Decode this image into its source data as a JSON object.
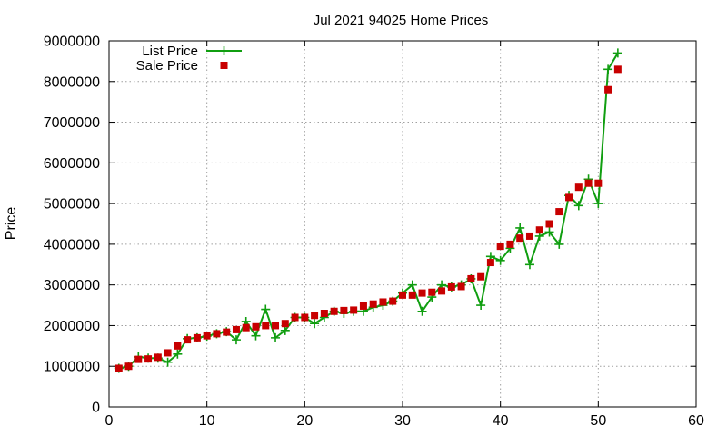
{
  "chart_data": {
    "type": "line",
    "title": "Jul 2021 94025 Home Prices",
    "xlabel": "",
    "ylabel": "Price",
    "xlim": [
      0,
      60
    ],
    "ylim": [
      0,
      9000000
    ],
    "xticks": [
      "0",
      "10",
      "20",
      "30",
      "40",
      "50",
      "60"
    ],
    "yticks": [
      "0",
      "1000000",
      "2000000",
      "3000000",
      "4000000",
      "5000000",
      "6000000",
      "7000000",
      "8000000",
      "9000000"
    ],
    "grid": true,
    "legend_position": "top-left",
    "series": [
      {
        "name": "List Price",
        "style": "line-points",
        "marker": "plus",
        "color": "#109e10",
        "points": [
          [
            1,
            950000
          ],
          [
            2,
            1000000
          ],
          [
            3,
            1230000
          ],
          [
            4,
            1200000
          ],
          [
            5,
            1200000
          ],
          [
            6,
            1100000
          ],
          [
            7,
            1300000
          ],
          [
            8,
            1680000
          ],
          [
            9,
            1700000
          ],
          [
            10,
            1740000
          ],
          [
            11,
            1800000
          ],
          [
            12,
            1850000
          ],
          [
            13,
            1650000
          ],
          [
            14,
            2100000
          ],
          [
            15,
            1750000
          ],
          [
            16,
            2400000
          ],
          [
            17,
            1700000
          ],
          [
            18,
            1880000
          ],
          [
            19,
            2200000
          ],
          [
            20,
            2200000
          ],
          [
            21,
            2050000
          ],
          [
            22,
            2200000
          ],
          [
            23,
            2350000
          ],
          [
            24,
            2300000
          ],
          [
            25,
            2350000
          ],
          [
            26,
            2350000
          ],
          [
            27,
            2450000
          ],
          [
            28,
            2500000
          ],
          [
            29,
            2600000
          ],
          [
            30,
            2800000
          ],
          [
            31,
            3000000
          ],
          [
            32,
            2350000
          ],
          [
            33,
            2700000
          ],
          [
            34,
            3000000
          ],
          [
            35,
            2950000
          ],
          [
            36,
            3000000
          ],
          [
            37,
            3150000
          ],
          [
            38,
            2500000
          ],
          [
            39,
            3700000
          ],
          [
            40,
            3600000
          ],
          [
            41,
            3900000
          ],
          [
            42,
            4400000
          ],
          [
            43,
            3500000
          ],
          [
            44,
            4200000
          ],
          [
            45,
            4300000
          ],
          [
            46,
            4000000
          ],
          [
            47,
            5200000
          ],
          [
            48,
            4950000
          ],
          [
            49,
            5600000
          ],
          [
            50,
            5000000
          ],
          [
            51,
            8300000
          ],
          [
            52,
            8700000
          ]
        ]
      },
      {
        "name": "Sale Price",
        "style": "points",
        "marker": "square",
        "color": "#c80000",
        "points": [
          [
            1,
            950000
          ],
          [
            2,
            1000000
          ],
          [
            3,
            1170000
          ],
          [
            4,
            1180000
          ],
          [
            5,
            1220000
          ],
          [
            6,
            1330000
          ],
          [
            7,
            1500000
          ],
          [
            8,
            1650000
          ],
          [
            9,
            1700000
          ],
          [
            10,
            1750000
          ],
          [
            11,
            1800000
          ],
          [
            12,
            1840000
          ],
          [
            13,
            1900000
          ],
          [
            14,
            1950000
          ],
          [
            15,
            1970000
          ],
          [
            16,
            2000000
          ],
          [
            17,
            2000000
          ],
          [
            18,
            2050000
          ],
          [
            19,
            2200000
          ],
          [
            20,
            2200000
          ],
          [
            21,
            2250000
          ],
          [
            22,
            2300000
          ],
          [
            23,
            2350000
          ],
          [
            24,
            2370000
          ],
          [
            25,
            2380000
          ],
          [
            26,
            2480000
          ],
          [
            27,
            2530000
          ],
          [
            28,
            2580000
          ],
          [
            29,
            2600000
          ],
          [
            30,
            2750000
          ],
          [
            31,
            2750000
          ],
          [
            32,
            2800000
          ],
          [
            33,
            2820000
          ],
          [
            34,
            2850000
          ],
          [
            35,
            2950000
          ],
          [
            36,
            2960000
          ],
          [
            37,
            3150000
          ],
          [
            38,
            3200000
          ],
          [
            39,
            3550000
          ],
          [
            40,
            3950000
          ],
          [
            41,
            4000000
          ],
          [
            42,
            4150000
          ],
          [
            43,
            4200000
          ],
          [
            44,
            4350000
          ],
          [
            45,
            4500000
          ],
          [
            46,
            4800000
          ],
          [
            47,
            5150000
          ],
          [
            48,
            5400000
          ],
          [
            49,
            5500000
          ],
          [
            50,
            5500000
          ],
          [
            51,
            7800000
          ],
          [
            52,
            8300000
          ]
        ]
      }
    ]
  }
}
